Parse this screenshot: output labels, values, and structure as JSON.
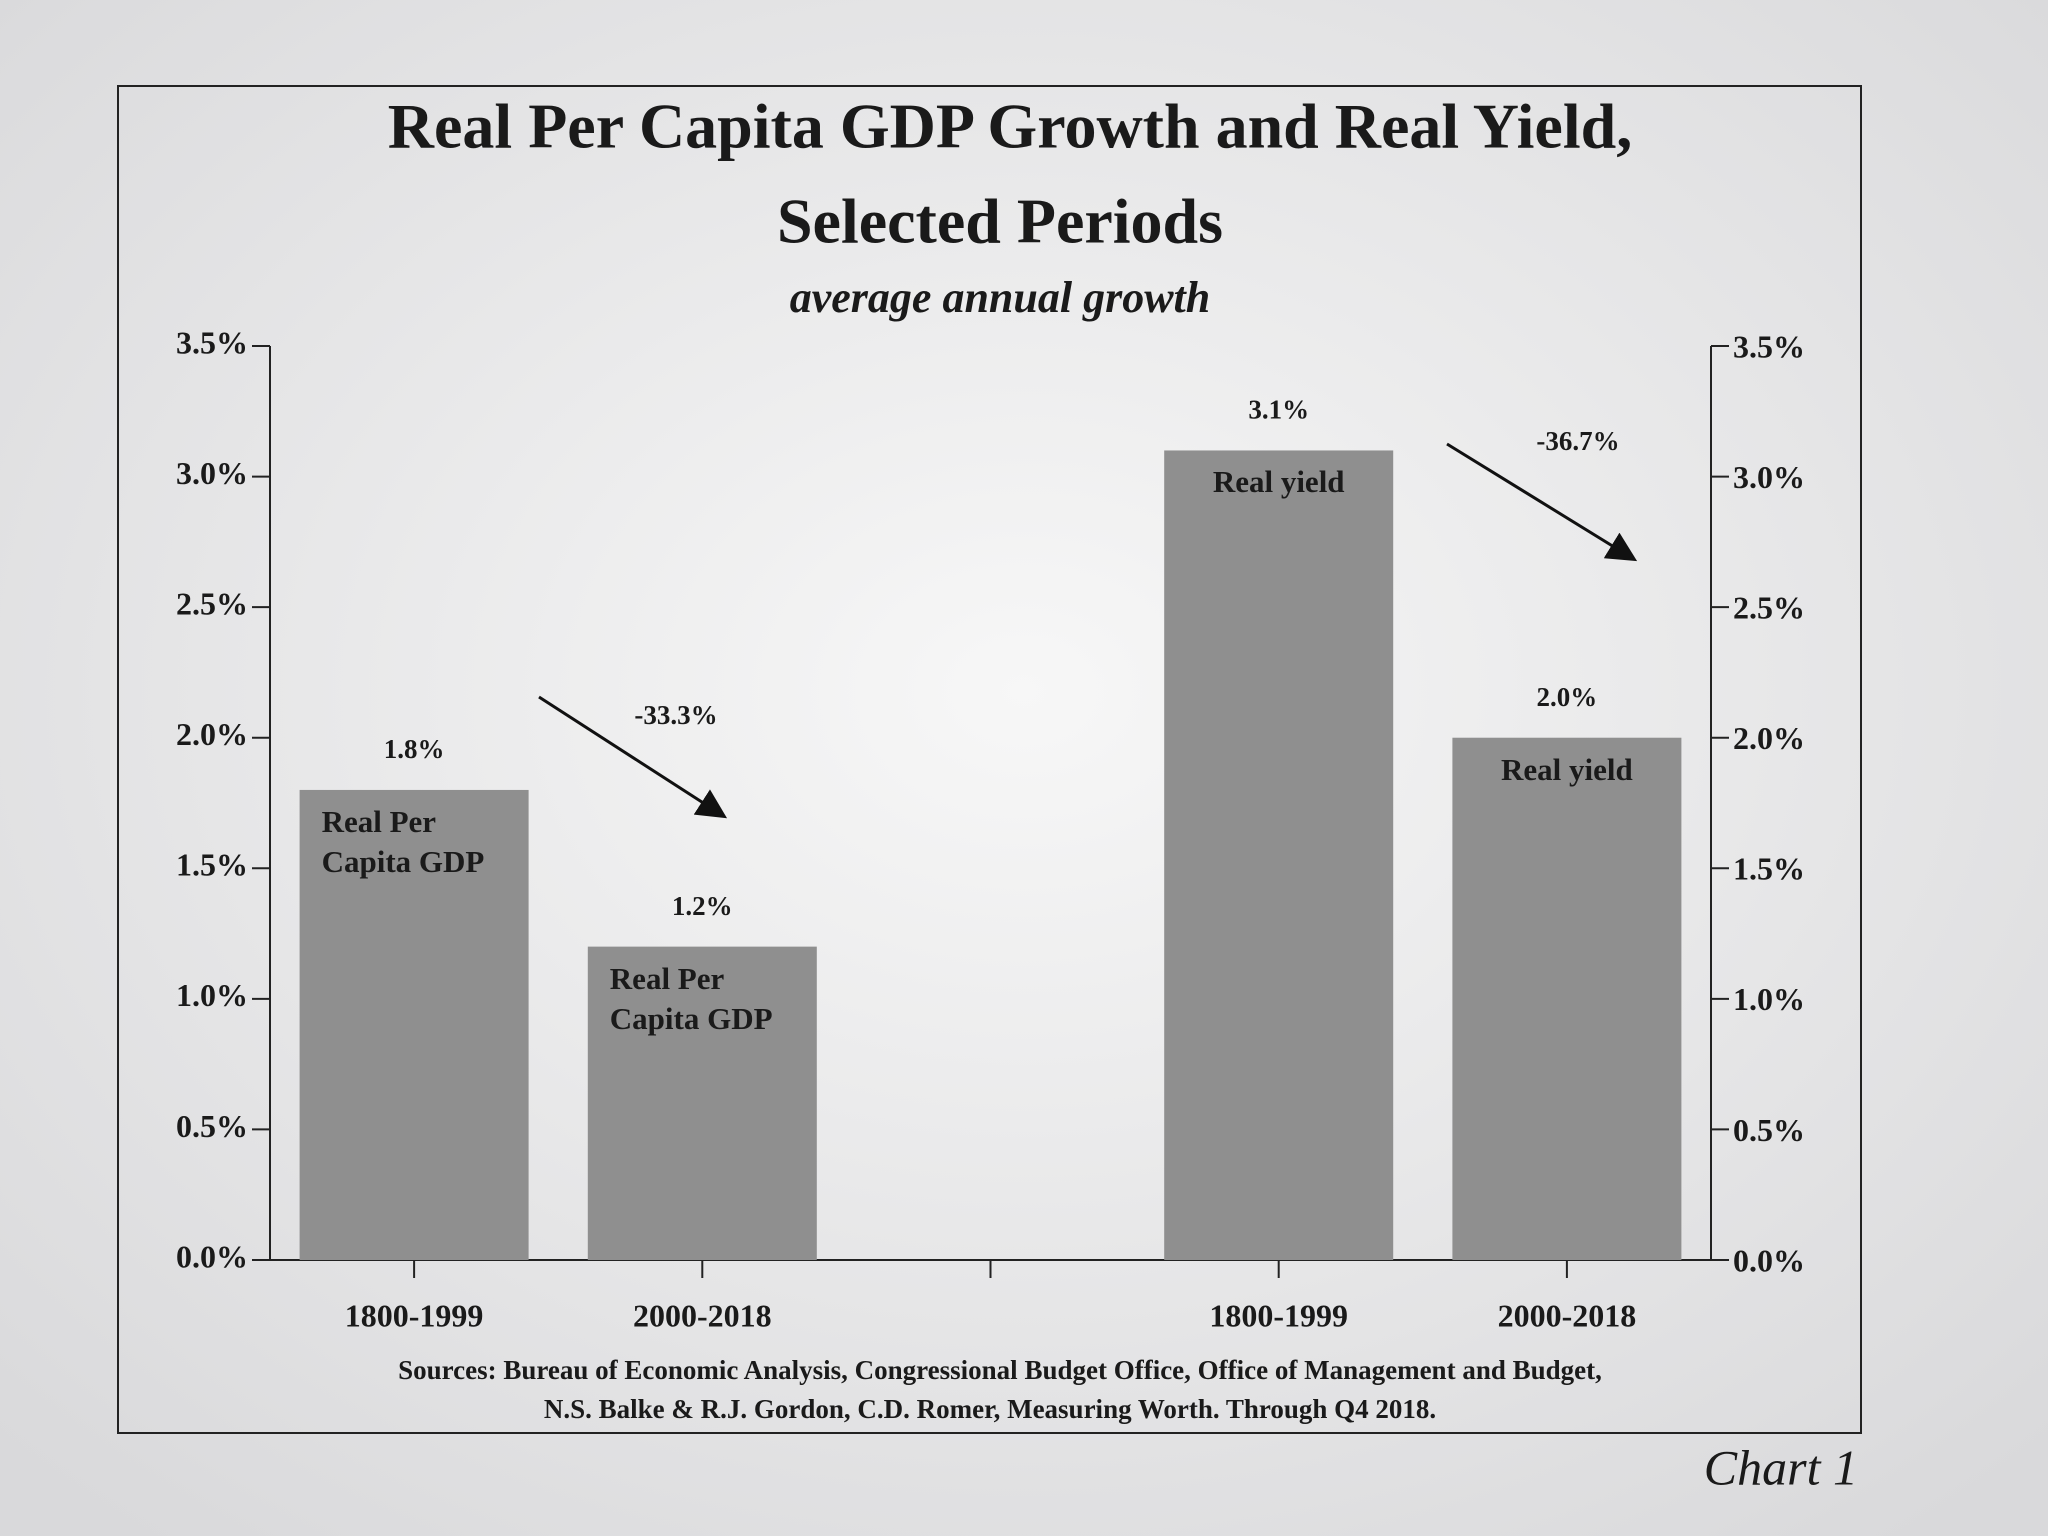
{
  "chart_data": {
    "type": "bar",
    "title": "Real Per Capita GDP Growth and Real Yield,",
    "title_line2": "Selected Periods",
    "subtitle": "average annual growth",
    "categories": [
      "1800-1999",
      "2000-2018",
      null,
      "1800-1999",
      "2000-2018"
    ],
    "series": [
      {
        "name": "Real Per Capita GDP",
        "color": "#8f8f8f",
        "values": [
          1.8,
          1.2,
          null,
          null,
          null
        ],
        "value_labels": [
          "1.8%",
          "1.2%",
          null,
          null,
          null
        ]
      },
      {
        "name": "Real yield",
        "color": "#8f8f8f",
        "values": [
          null,
          null,
          null,
          3.1,
          2.0
        ],
        "value_labels": [
          null,
          null,
          null,
          "3.1%",
          "2.0%"
        ]
      }
    ],
    "ylim": [
      0,
      3.5
    ],
    "yticks": [
      {
        "value": 0,
        "label": "0.0%"
      },
      {
        "value": 0.5,
        "label": "0.5%"
      },
      {
        "value": 1,
        "label": "1.0%"
      },
      {
        "value": 1.5,
        "label": "1.5%"
      },
      {
        "value": 2,
        "label": "2.0%"
      },
      {
        "value": 2.5,
        "label": "2.5%"
      },
      {
        "value": 3,
        "label": "3.0%"
      },
      {
        "value": 3.5,
        "label": "3.5%"
      }
    ],
    "annotations": [
      "-33.3%",
      "-36.7%"
    ],
    "sources": [
      "Sources: Bureau of Economic Analysis, Congressional Budget Office, Office of Management and Budget,",
      "N.S. Balke & R.J. Gordon, C.D. Romer, Measuring Worth. Through Q4 2018."
    ],
    "chart_label": "Chart 1"
  }
}
